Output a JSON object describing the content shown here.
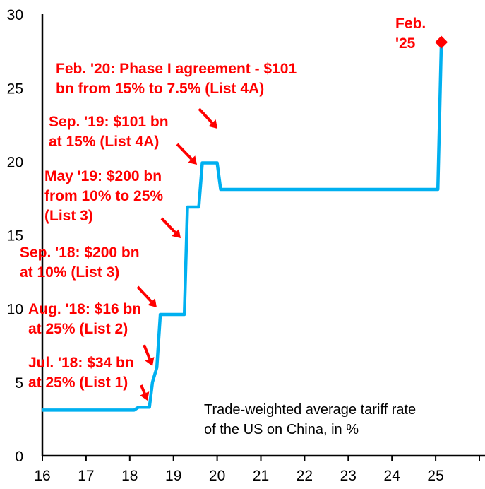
{
  "chart_data": {
    "type": "line",
    "title": "",
    "xlabel": "",
    "ylabel": "",
    "xlim": [
      16,
      26.1
    ],
    "ylim": [
      0,
      30
    ],
    "xticks": [
      "16",
      "17",
      "18",
      "19",
      "20",
      "21",
      "22",
      "23",
      "24",
      "25"
    ],
    "yticks": [
      "0",
      "5",
      "10",
      "15",
      "20",
      "25",
      "30"
    ],
    "grid": false,
    "line_color": "#00b0f0",
    "annotation_color": "#ff0000",
    "series": [
      {
        "x": [
          16,
          18.1,
          18.2,
          18.45,
          18.52,
          18.62,
          18.7,
          19.25,
          19.32,
          19.58,
          19.66,
          20.0,
          20.08,
          25.05,
          25.13
        ],
        "y": [
          3.1,
          3.1,
          3.3,
          3.3,
          5.0,
          6.0,
          9.6,
          9.6,
          16.9,
          16.9,
          19.9,
          19.9,
          18.1,
          18.1,
          28.1
        ]
      }
    ],
    "marker": {
      "x": 25.13,
      "y": 28.1,
      "shape": "diamond"
    },
    "note": [
      "Trade-weighted average tariff rate",
      "of the US on China, in %"
    ],
    "annotations": [
      {
        "lines": [
          "Jul. '18: $34 bn",
          "at 25% (List 1)"
        ]
      },
      {
        "lines": [
          "Aug. '18: $16 bn",
          "at 25% (List 2)"
        ]
      },
      {
        "lines": [
          "Sep. '18: $200 bn",
          "at 10% (List 3)"
        ]
      },
      {
        "lines": [
          "May '19: $200 bn",
          "from 10% to 25%",
          "(List 3)"
        ]
      },
      {
        "lines": [
          "Sep. '19: $101 bn",
          "at 15% (List 4A)"
        ]
      },
      {
        "lines": [
          "Feb. '20: Phase I agreement - $101",
          "bn from 15% to 7.5% (List 4A)"
        ]
      },
      {
        "lines": [
          "Feb.",
          "'25"
        ]
      }
    ]
  }
}
